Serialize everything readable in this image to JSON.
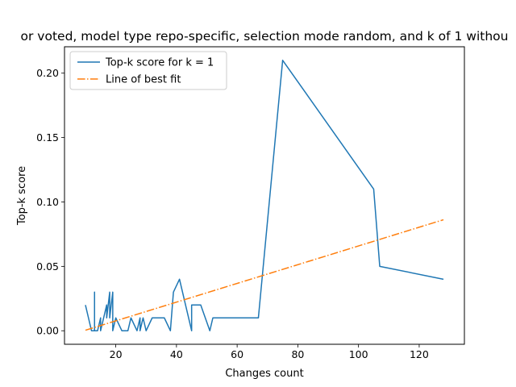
{
  "chart_data": {
    "type": "line",
    "title": "or voted, model type repo-specific, selection mode random, and k of 1 withou",
    "xlabel": "Changes count",
    "ylabel": "Top-k score",
    "xlim": [
      3.1,
      134.9
    ],
    "ylim": [
      -0.0105,
      0.2205
    ],
    "xticks": [
      20,
      40,
      60,
      80,
      100,
      120
    ],
    "xtick_labels": [
      "20",
      "40",
      "60",
      "80",
      "100",
      "120"
    ],
    "yticks": [
      0.0,
      0.05,
      0.1,
      0.15,
      0.2
    ],
    "ytick_labels": [
      "0.00",
      "0.05",
      "0.10",
      "0.15",
      "0.20"
    ],
    "legend_position": "upper-left",
    "grid": false,
    "series": [
      {
        "name": "Top-k score for k = 1",
        "color": "#1f77b4",
        "style": "solid",
        "x": [
          10,
          11,
          12,
          13,
          13,
          13,
          14,
          15,
          15,
          16,
          17,
          17,
          18,
          18,
          19,
          19,
          20,
          22,
          24,
          25,
          27,
          28,
          28,
          29,
          30,
          32,
          36,
          38,
          39,
          41,
          43,
          45,
          45,
          48,
          51,
          52,
          67,
          75,
          105,
          107,
          128
        ],
        "y": [
          0.02,
          0.01,
          0.0,
          0.0,
          0.03,
          0.0,
          0.0,
          0.01,
          0.0,
          0.01,
          0.02,
          0.01,
          0.03,
          0.01,
          0.03,
          0.0,
          0.01,
          0.0,
          0.0,
          0.01,
          0.0,
          0.01,
          0.0,
          0.01,
          0.0,
          0.01,
          0.01,
          0.0,
          0.03,
          0.04,
          0.02,
          0.0,
          0.02,
          0.02,
          0.0,
          0.01,
          0.01,
          0.21,
          0.11,
          0.05,
          0.04
        ]
      },
      {
        "name": "Line of best fit",
        "color": "#ff7f0e",
        "style": "dashdot",
        "x": [
          10,
          128
        ],
        "y": [
          0.0004,
          0.0862
        ]
      }
    ]
  }
}
